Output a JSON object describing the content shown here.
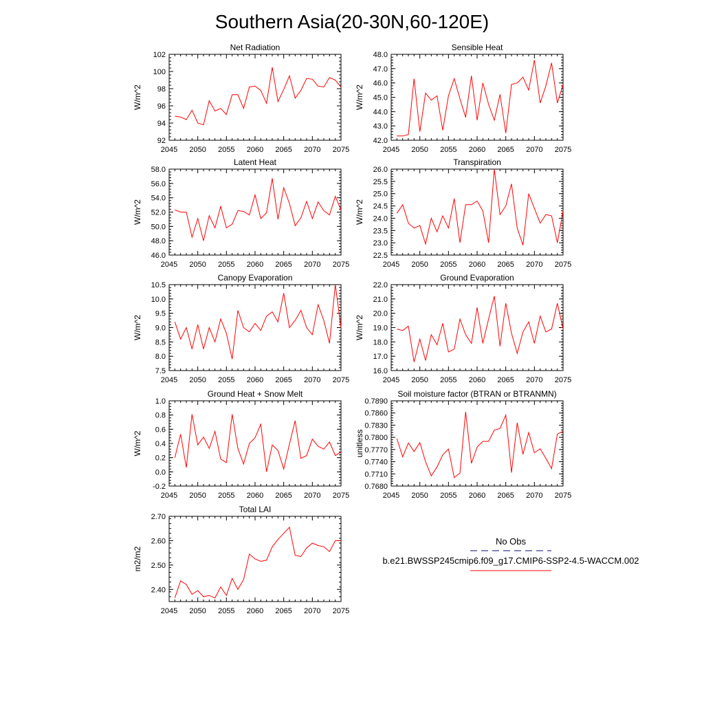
{
  "page": {
    "title": "Southern Asia(20-30N,60-120E)"
  },
  "legend": {
    "obs_label": "No Obs",
    "obs_color": "#3a3a8c",
    "model_label": "b.e21.BWSSP245cmip6.f09_g17.CMIP6-SSP2-4.5-WACCM.002",
    "model_color": "#ff0000"
  },
  "chart_data": [
    {
      "type": "line",
      "title": "Net Radiation",
      "ylabel": "W/m^2",
      "xlim": [
        2045,
        2075
      ],
      "ylim": [
        92,
        102
      ],
      "xticks": [
        2045,
        2050,
        2055,
        2060,
        2065,
        2070,
        2075
      ],
      "yticks": [
        92,
        94,
        96,
        98,
        100,
        102
      ],
      "ytick_labels": [
        "92",
        "94",
        "96",
        "98",
        "100",
        "102"
      ],
      "x": [
        2046,
        2047,
        2048,
        2049,
        2050,
        2051,
        2052,
        2053,
        2054,
        2055,
        2056,
        2057,
        2058,
        2059,
        2060,
        2061,
        2062,
        2063,
        2064,
        2065,
        2066,
        2067,
        2068,
        2069,
        2070,
        2071,
        2072,
        2073,
        2074,
        2075
      ],
      "series": [
        {
          "name": "b.e21.BWSSP245cmip6.f09_g17.CMIP6-SSP2-4.5-WACCM.002",
          "color": "#ff0000",
          "values": [
            94.8,
            94.7,
            94.4,
            95.5,
            94.0,
            93.8,
            96.6,
            95.4,
            95.7,
            95.0,
            97.3,
            97.3,
            95.7,
            98.2,
            98.3,
            97.8,
            96.3,
            100.5,
            96.5,
            97.9,
            99.5,
            96.9,
            97.8,
            99.2,
            99.1,
            98.3,
            98.2,
            99.3,
            99.0,
            98.2
          ]
        }
      ]
    },
    {
      "type": "line",
      "title": "Sensible Heat",
      "ylabel": "W/m^2",
      "xlim": [
        2045,
        2075
      ],
      "ylim": [
        42,
        48
      ],
      "xticks": [
        2045,
        2050,
        2055,
        2060,
        2065,
        2070,
        2075
      ],
      "yticks": [
        42,
        43,
        44,
        45,
        46,
        47,
        48
      ],
      "ytick_labels": [
        "42.0",
        "43.0",
        "44.0",
        "45.0",
        "46.0",
        "47.0",
        "48.0"
      ],
      "x": [
        2046,
        2047,
        2048,
        2049,
        2050,
        2051,
        2052,
        2053,
        2054,
        2055,
        2056,
        2057,
        2058,
        2059,
        2060,
        2061,
        2062,
        2063,
        2064,
        2065,
        2066,
        2067,
        2068,
        2069,
        2070,
        2071,
        2072,
        2073,
        2074,
        2075
      ],
      "series": [
        {
          "name": "b.e21.BWSSP245cmip6.f09_g17.CMIP6-SSP2-4.5-WACCM.002",
          "color": "#ff0000",
          "values": [
            42.3,
            42.3,
            42.4,
            46.3,
            42.6,
            45.3,
            44.8,
            45.1,
            42.7,
            45.1,
            46.3,
            44.9,
            43.6,
            46.5,
            43.4,
            46.0,
            44.5,
            43.4,
            45.2,
            42.5,
            45.9,
            46.0,
            46.4,
            45.5,
            47.6,
            44.6,
            45.8,
            47.4,
            44.6,
            45.9
          ]
        }
      ]
    },
    {
      "type": "line",
      "title": "Latent Heat",
      "ylabel": "W/m^2",
      "xlim": [
        2045,
        2075
      ],
      "ylim": [
        46,
        58
      ],
      "xticks": [
        2045,
        2050,
        2055,
        2060,
        2065,
        2070,
        2075
      ],
      "yticks": [
        46,
        48,
        50,
        52,
        54,
        56,
        58
      ],
      "ytick_labels": [
        "46.0",
        "48.0",
        "50.0",
        "52.0",
        "54.0",
        "56.0",
        "58.0"
      ],
      "x": [
        2046,
        2047,
        2048,
        2049,
        2050,
        2051,
        2052,
        2053,
        2054,
        2055,
        2056,
        2057,
        2058,
        2059,
        2060,
        2061,
        2062,
        2063,
        2064,
        2065,
        2066,
        2067,
        2068,
        2069,
        2070,
        2071,
        2072,
        2073,
        2074,
        2075
      ],
      "series": [
        {
          "name": "b.e21.BWSSP245cmip6.f09_g17.CMIP6-SSP2-4.5-WACCM.002",
          "color": "#ff0000",
          "values": [
            52.3,
            52.0,
            52.0,
            48.5,
            51.1,
            48.0,
            51.5,
            49.8,
            52.8,
            49.8,
            50.3,
            52.2,
            52.1,
            51.6,
            54.4,
            51.1,
            51.9,
            56.7,
            51.0,
            55.4,
            53.2,
            50.1,
            51.2,
            53.5,
            51.1,
            53.4,
            52.2,
            51.6,
            54.2,
            52.3
          ]
        }
      ]
    },
    {
      "type": "line",
      "title": "Transpiration",
      "ylabel": "W/m^2",
      "xlim": [
        2045,
        2075
      ],
      "ylim": [
        22.5,
        26
      ],
      "xticks": [
        2045,
        2050,
        2055,
        2060,
        2065,
        2070,
        2075
      ],
      "yticks": [
        22.5,
        23.0,
        23.5,
        24.0,
        24.5,
        25.0,
        25.5,
        26.0
      ],
      "ytick_labels": [
        "22.5",
        "23.0",
        "23.5",
        "24.0",
        "24.5",
        "25.0",
        "25.5",
        "26.0"
      ],
      "x": [
        2046,
        2047,
        2048,
        2049,
        2050,
        2051,
        2052,
        2053,
        2054,
        2055,
        2056,
        2057,
        2058,
        2059,
        2060,
        2061,
        2062,
        2063,
        2064,
        2065,
        2066,
        2067,
        2068,
        2069,
        2070,
        2071,
        2072,
        2073,
        2074,
        2075
      ],
      "series": [
        {
          "name": "b.e21.BWSSP245cmip6.f09_g17.CMIP6-SSP2-4.5-WACCM.002",
          "color": "#ff0000",
          "values": [
            24.2,
            24.55,
            23.8,
            23.6,
            23.7,
            22.95,
            24.0,
            23.45,
            24.1,
            23.6,
            24.8,
            23.0,
            24.55,
            24.55,
            24.7,
            24.3,
            23.0,
            26.0,
            24.15,
            24.5,
            25.4,
            23.6,
            22.9,
            25.0,
            24.4,
            23.8,
            24.15,
            24.1,
            23.0,
            24.3
          ]
        }
      ]
    },
    {
      "type": "line",
      "title": "Canopy Evaporation",
      "ylabel": "W/m^2",
      "xlim": [
        2045,
        2075
      ],
      "ylim": [
        7.5,
        10.5
      ],
      "xticks": [
        2045,
        2050,
        2055,
        2060,
        2065,
        2070,
        2075
      ],
      "yticks": [
        7.5,
        8.0,
        8.5,
        9.0,
        9.5,
        10.0,
        10.5
      ],
      "ytick_labels": [
        "7.5",
        "8.0",
        "8.5",
        "9.0",
        "9.5",
        "10.0",
        "10.5"
      ],
      "x": [
        2046,
        2047,
        2048,
        2049,
        2050,
        2051,
        2052,
        2053,
        2054,
        2055,
        2056,
        2057,
        2058,
        2059,
        2060,
        2061,
        2062,
        2063,
        2064,
        2065,
        2066,
        2067,
        2068,
        2069,
        2070,
        2071,
        2072,
        2073,
        2074,
        2075
      ],
      "series": [
        {
          "name": "b.e21.BWSSP245cmip6.f09_g17.CMIP6-SSP2-4.5-WACCM.002",
          "color": "#ff0000",
          "values": [
            9.2,
            8.6,
            9.0,
            8.25,
            9.1,
            8.25,
            9.0,
            8.5,
            9.3,
            8.8,
            7.9,
            9.6,
            9.0,
            8.85,
            9.15,
            8.9,
            9.4,
            9.55,
            9.2,
            10.2,
            9.0,
            9.25,
            9.6,
            9.0,
            8.75,
            9.8,
            9.25,
            8.45,
            10.5,
            9.0
          ]
        }
      ]
    },
    {
      "type": "line",
      "title": "Ground Evaporation",
      "ylabel": "W/m^2",
      "xlim": [
        2045,
        2075
      ],
      "ylim": [
        16,
        22
      ],
      "xticks": [
        2045,
        2050,
        2055,
        2060,
        2065,
        2070,
        2075
      ],
      "yticks": [
        16,
        17,
        18,
        19,
        20,
        21,
        22
      ],
      "ytick_labels": [
        "16.0",
        "17.0",
        "18.0",
        "19.0",
        "20.0",
        "21.0",
        "22.0"
      ],
      "x": [
        2046,
        2047,
        2048,
        2049,
        2050,
        2051,
        2052,
        2053,
        2054,
        2055,
        2056,
        2057,
        2058,
        2059,
        2060,
        2061,
        2062,
        2063,
        2064,
        2065,
        2066,
        2067,
        2068,
        2069,
        2070,
        2071,
        2072,
        2073,
        2074,
        2075
      ],
      "series": [
        {
          "name": "b.e21.BWSSP245cmip6.f09_g17.CMIP6-SSP2-4.5-WACCM.002",
          "color": "#ff0000",
          "values": [
            18.9,
            18.8,
            19.1,
            16.6,
            18.2,
            16.7,
            18.5,
            17.8,
            19.3,
            17.3,
            17.5,
            19.6,
            18.5,
            17.9,
            20.4,
            17.9,
            19.6,
            21.2,
            17.7,
            20.7,
            18.6,
            17.2,
            18.7,
            19.4,
            17.9,
            19.8,
            18.7,
            18.9,
            20.7,
            18.9
          ]
        }
      ]
    },
    {
      "type": "line",
      "title": "Ground Heat + Snow Melt",
      "ylabel": "W/m^2",
      "xlim": [
        2045,
        2075
      ],
      "ylim": [
        -0.2,
        1.0
      ],
      "xticks": [
        2045,
        2050,
        2055,
        2060,
        2065,
        2070,
        2075
      ],
      "yticks": [
        -0.2,
        0.0,
        0.2,
        0.4,
        0.6,
        0.8,
        1.0
      ],
      "ytick_labels": [
        "-0.2",
        "0.0",
        "0.2",
        "0.4",
        "0.6",
        "0.8",
        "1.0"
      ],
      "x": [
        2046,
        2047,
        2048,
        2049,
        2050,
        2051,
        2052,
        2053,
        2054,
        2055,
        2056,
        2057,
        2058,
        2059,
        2060,
        2061,
        2062,
        2063,
        2064,
        2065,
        2066,
        2067,
        2068,
        2069,
        2070,
        2071,
        2072,
        2073,
        2074,
        2075
      ],
      "series": [
        {
          "name": "b.e21.BWSSP245cmip6.f09_g17.CMIP6-SSP2-4.5-WACCM.002",
          "color": "#ff0000",
          "values": [
            0.2,
            0.53,
            0.06,
            0.81,
            0.38,
            0.49,
            0.33,
            0.57,
            0.18,
            0.13,
            0.81,
            0.33,
            0.11,
            0.4,
            0.48,
            0.67,
            0.0,
            0.38,
            0.3,
            0.04,
            0.39,
            0.72,
            0.19,
            0.23,
            0.46,
            0.36,
            0.32,
            0.42,
            0.23,
            0.28
          ]
        }
      ]
    },
    {
      "type": "line",
      "title": "Soil moisture factor (BTRAN or BTRANMN)",
      "ylabel": "unitless",
      "xlim": [
        2045,
        2075
      ],
      "ylim": [
        0.768,
        0.789
      ],
      "xticks": [
        2045,
        2050,
        2055,
        2060,
        2065,
        2070,
        2075
      ],
      "yticks": [
        0.768,
        0.771,
        0.774,
        0.777,
        0.78,
        0.783,
        0.786,
        0.789
      ],
      "ytick_labels": [
        "0.7680",
        "0.7710",
        "0.7740",
        "0.7770",
        "0.7800",
        "0.7830",
        "0.7860",
        "0.7890"
      ],
      "x": [
        2046,
        2047,
        2048,
        2049,
        2050,
        2051,
        2052,
        2053,
        2054,
        2055,
        2056,
        2057,
        2058,
        2059,
        2060,
        2061,
        2062,
        2063,
        2064,
        2065,
        2066,
        2067,
        2068,
        2069,
        2070,
        2071,
        2072,
        2073,
        2074,
        2075
      ],
      "series": [
        {
          "name": "b.e21.BWSSP245cmip6.f09_g17.CMIP6-SSP2-4.5-WACCM.002",
          "color": "#ff0000",
          "values": [
            0.7797,
            0.7752,
            0.7786,
            0.7765,
            0.7787,
            0.774,
            0.7705,
            0.7727,
            0.7757,
            0.7771,
            0.7701,
            0.7712,
            0.7863,
            0.7736,
            0.7776,
            0.779,
            0.779,
            0.7818,
            0.7822,
            0.7855,
            0.7713,
            0.7836,
            0.7758,
            0.7812,
            0.7762,
            0.7772,
            0.7748,
            0.7723,
            0.7808,
            0.7815
          ]
        }
      ]
    },
    {
      "type": "line",
      "title": "Total LAI",
      "ylabel": "m2/m2",
      "xlim": [
        2045,
        2075
      ],
      "ylim": [
        2.35,
        2.7
      ],
      "xticks": [
        2045,
        2050,
        2055,
        2060,
        2065,
        2070,
        2075
      ],
      "yticks": [
        2.4,
        2.5,
        2.6,
        2.7
      ],
      "ytick_labels": [
        "2.40",
        "2.50",
        "2.60",
        "2.70"
      ],
      "x": [
        2046,
        2047,
        2048,
        2049,
        2050,
        2051,
        2052,
        2053,
        2054,
        2055,
        2056,
        2057,
        2058,
        2059,
        2060,
        2061,
        2062,
        2063,
        2064,
        2065,
        2066,
        2067,
        2068,
        2069,
        2070,
        2071,
        2072,
        2073,
        2074,
        2075
      ],
      "series": [
        {
          "name": "b.e21.BWSSP245cmip6.f09_g17.CMIP6-SSP2-4.5-WACCM.002",
          "color": "#ff0000",
          "values": [
            2.365,
            2.435,
            2.42,
            2.38,
            2.395,
            2.37,
            2.375,
            2.365,
            2.41,
            2.375,
            2.445,
            2.4,
            2.44,
            2.545,
            2.525,
            2.515,
            2.52,
            2.575,
            2.605,
            2.63,
            2.655,
            2.54,
            2.535,
            2.57,
            2.59,
            2.58,
            2.575,
            2.555,
            2.6,
            2.6
          ]
        }
      ]
    }
  ]
}
